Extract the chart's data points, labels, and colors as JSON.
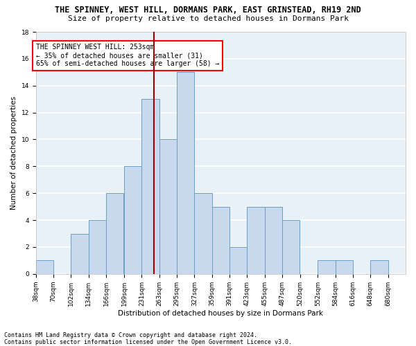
{
  "title1": "THE SPINNEY, WEST HILL, DORMANS PARK, EAST GRINSTEAD, RH19 2ND",
  "title2": "Size of property relative to detached houses in Dormans Park",
  "xlabel": "Distribution of detached houses by size in Dormans Park",
  "ylabel": "Number of detached properties",
  "footer1": "Contains HM Land Registry data © Crown copyright and database right 2024.",
  "footer2": "Contains public sector information licensed under the Open Government Licence v3.0.",
  "annotation_line1": "THE SPINNEY WEST HILL: 253sqm",
  "annotation_line2": "← 35% of detached houses are smaller (31)",
  "annotation_line3": "65% of semi-detached houses are larger (58) →",
  "bar_color": "#c9d9ed",
  "bar_edge_color": "#6a9ec5",
  "bar_edge_width": 0.7,
  "vline_color": "#9b0000",
  "vline_x": 253,
  "bin_edges": [
    38,
    70,
    102,
    134,
    166,
    199,
    231,
    263,
    295,
    327,
    359,
    391,
    423,
    455,
    487,
    520,
    552,
    584,
    616,
    648,
    680
  ],
  "counts": [
    1,
    0,
    3,
    4,
    6,
    8,
    13,
    10,
    15,
    6,
    5,
    2,
    5,
    5,
    4,
    0,
    1,
    1,
    0,
    1
  ],
  "ylim": [
    0,
    18
  ],
  "yticks": [
    0,
    2,
    4,
    6,
    8,
    10,
    12,
    14,
    16,
    18
  ],
  "background_color": "#e8f0f8",
  "grid_color": "#ffffff",
  "title1_fontsize": 8.5,
  "title2_fontsize": 8.0,
  "axis_label_fontsize": 7.5,
  "tick_fontsize": 6.5,
  "footer_fontsize": 6.0,
  "ann_fontsize": 7.0
}
